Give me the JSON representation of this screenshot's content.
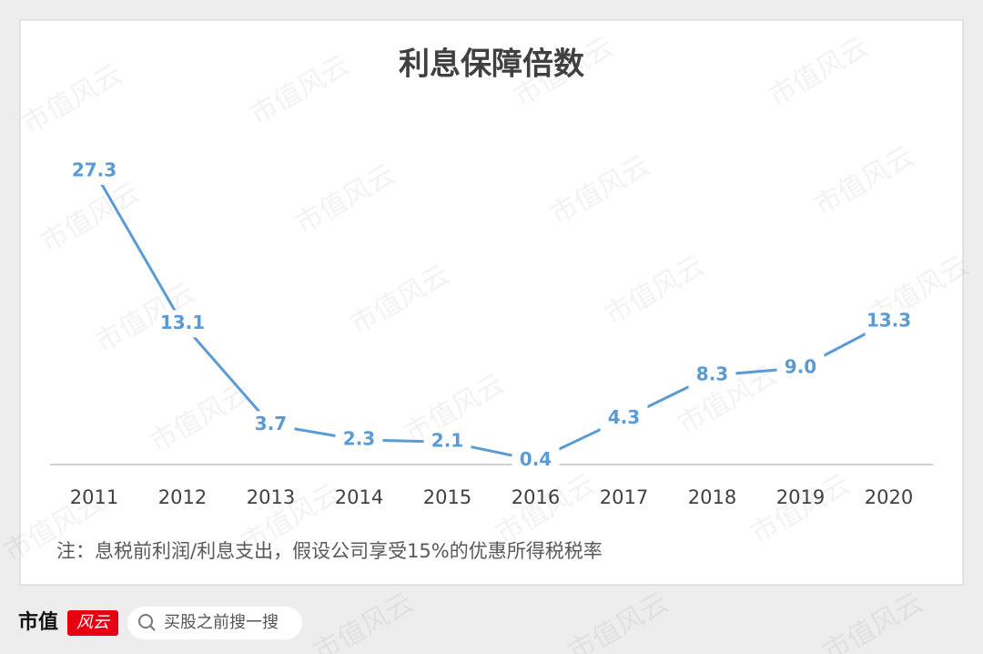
{
  "chart_data": {
    "type": "line",
    "title": "利息保障倍数",
    "categories": [
      "2011",
      "2012",
      "2013",
      "2014",
      "2015",
      "2016",
      "2017",
      "2018",
      "2019",
      "2020"
    ],
    "series": [
      {
        "name": "利息保障倍数",
        "color": "#5b9bd5",
        "values": [
          27.3,
          13.1,
          3.7,
          2.3,
          2.1,
          0.4,
          4.3,
          8.3,
          9.0,
          13.3
        ],
        "value_labels": [
          "27.3",
          "13.1",
          "3.7",
          "2.3",
          "2.1",
          "0.4",
          "4.3",
          "8.3",
          "9.0",
          "13.3"
        ]
      }
    ],
    "note": "注：息税前利润/利息支出，假设公司享受15%的优惠所得税税率"
  },
  "footer": {
    "brand": "市值",
    "brand_mark": "风云",
    "search_placeholder": "买股之前搜一搜"
  },
  "watermark": "市值风云"
}
